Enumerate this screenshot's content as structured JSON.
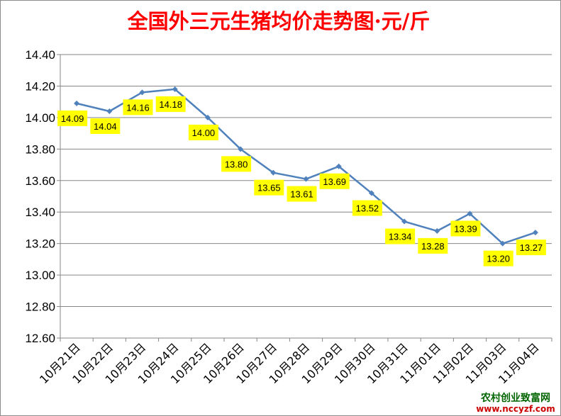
{
  "chart_data": {
    "type": "line",
    "title": "全国外三元生猪均价走势图·元/斤",
    "xlabel": "",
    "ylabel": "",
    "categories": [
      "10月21日",
      "10月22日",
      "10月23日",
      "10月24日",
      "10月25日",
      "10月26日",
      "10月27日",
      "10月28日",
      "10月29日",
      "10月30日",
      "10月31日",
      "11月01日",
      "11月02日",
      "11月03日",
      "11月04日"
    ],
    "series": [
      {
        "values": [
          14.09,
          14.04,
          14.16,
          14.18,
          14.0,
          13.8,
          13.65,
          13.61,
          13.69,
          13.52,
          13.34,
          13.28,
          13.39,
          13.2,
          13.27
        ]
      }
    ],
    "data_labels": [
      "14.09",
      "14.04",
      "14.16",
      "14.18",
      "14.00",
      "13.80",
      "13.65",
      "13.61",
      "13.69",
      "13.52",
      "13.34",
      "13.28",
      "13.39",
      "13.20",
      "13.27"
    ],
    "ylim": [
      12.6,
      14.4
    ],
    "yticks": [
      "12.60",
      "12.80",
      "13.00",
      "13.20",
      "13.40",
      "13.60",
      "13.80",
      "14.00",
      "14.20",
      "14.40"
    ],
    "grid": true,
    "legend": "none",
    "colors": {
      "line": "#4f81bd",
      "label_bg": "#ffff00",
      "title": "#ff0000",
      "grid": "#868686"
    }
  },
  "watermark": {
    "line1": "农村创业致富网",
    "line2": "www.nccyzf.com"
  }
}
